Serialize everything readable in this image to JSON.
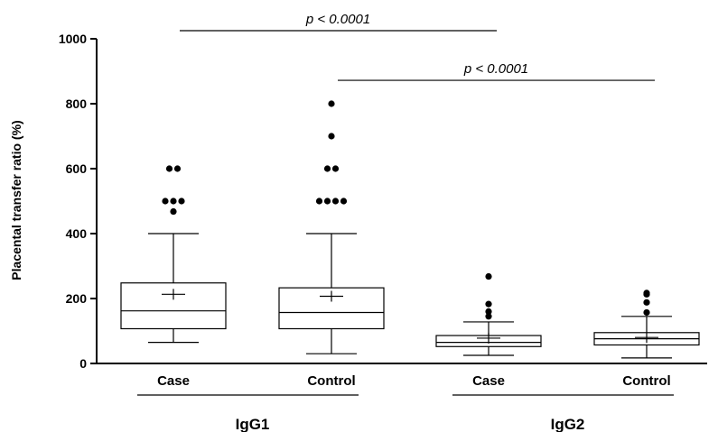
{
  "chart_data": {
    "type": "box",
    "ylabel": "Placental transfer ratio (%)",
    "ylim": [
      0,
      1000
    ],
    "yticks": [
      0,
      200,
      400,
      600,
      800,
      1000
    ],
    "grid": false,
    "groups": [
      {
        "label": "IgG1"
      },
      {
        "label": "IgG2"
      }
    ],
    "boxes": [
      {
        "group": "IgG1",
        "label": "Case",
        "whisker_low": 65,
        "q1": 107,
        "median": 162,
        "q3": 248,
        "whisker_high": 400,
        "mean": 213,
        "outliers": [
          468,
          500,
          500,
          500,
          600,
          600
        ]
      },
      {
        "group": "IgG1",
        "label": "Control",
        "whisker_low": 30,
        "q1": 107,
        "median": 157,
        "q3": 233,
        "whisker_high": 400,
        "mean": 207,
        "outliers": [
          500,
          500,
          500,
          500,
          600,
          600,
          700,
          800
        ]
      },
      {
        "group": "IgG2",
        "label": "Case",
        "whisker_low": 25,
        "q1": 52,
        "median": 65,
        "q3": 86,
        "whisker_high": 128,
        "mean": 78,
        "outliers": [
          145,
          160,
          183,
          268
        ]
      },
      {
        "group": "IgG2",
        "label": "Control",
        "whisker_low": 17,
        "q1": 57,
        "median": 76,
        "q3": 95,
        "whisker_high": 145,
        "mean": 80,
        "outliers": [
          157,
          188,
          213,
          217
        ]
      }
    ],
    "annotations": [
      {
        "text": "p < 0.0001",
        "from_box": 0,
        "to_box": 2,
        "y": 1025
      },
      {
        "text": "p < 0.0001",
        "from_box": 1,
        "to_box": 3,
        "y": 872
      }
    ]
  }
}
